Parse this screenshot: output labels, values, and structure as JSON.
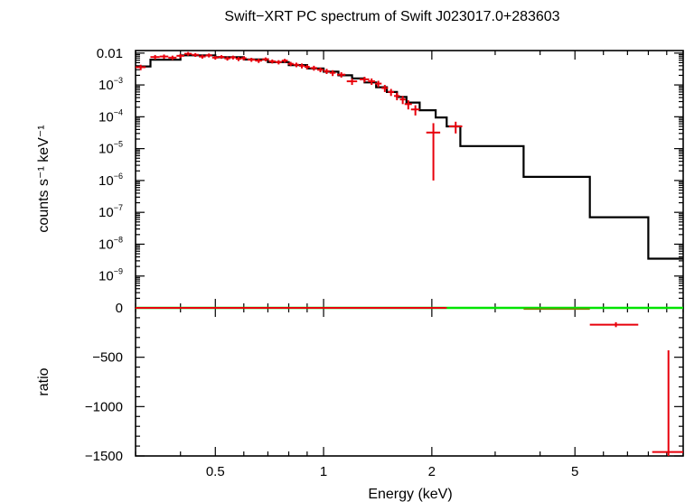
{
  "chart_data": [
    {
      "panel": "spectrum",
      "type": "line",
      "title": "Swift−XRT PC spectrum of Swift J023017.0+283603",
      "xlabel": "Energy (keV)",
      "ylabel": "counts s⁻¹ keV⁻¹",
      "xscale": "log",
      "yscale": "log",
      "xlim": [
        0.3,
        10
      ],
      "ylim": [
        1e-10,
        0.012
      ],
      "xticks": [
        0.5,
        1,
        2,
        5
      ],
      "yticks": [
        {
          "value": 0.01,
          "label": "0.01"
        },
        {
          "value": 0.001,
          "base": "10",
          "exp": "−3"
        },
        {
          "value": 0.0001,
          "base": "10",
          "exp": "−4"
        },
        {
          "value": 1e-05,
          "base": "10",
          "exp": "−5"
        },
        {
          "value": 1e-06,
          "base": "10",
          "exp": "−6"
        },
        {
          "value": 1e-07,
          "base": "10",
          "exp": "−7"
        },
        {
          "value": 1e-08,
          "base": "10",
          "exp": "−8"
        },
        {
          "value": 1e-09,
          "base": "10",
          "exp": "−9"
        }
      ],
      "grid": false,
      "series": [
        {
          "kind": "model-step",
          "color": "#000000",
          "bins": [
            [
              0.3,
              0.33,
              0.0038
            ],
            [
              0.33,
              0.4,
              0.0062
            ],
            [
              0.4,
              0.5,
              0.0085
            ],
            [
              0.5,
              0.6,
              0.0074
            ],
            [
              0.6,
              0.7,
              0.0063
            ],
            [
              0.7,
              0.8,
              0.0052
            ],
            [
              0.8,
              0.9,
              0.0042
            ],
            [
              0.9,
              1.0,
              0.0033
            ],
            [
              1.0,
              1.1,
              0.0026
            ],
            [
              1.1,
              1.2,
              0.002
            ],
            [
              1.2,
              1.3,
              0.0016
            ],
            [
              1.3,
              1.4,
              0.0012
            ],
            [
              1.4,
              1.5,
              0.00085
            ],
            [
              1.5,
              1.6,
              0.0006
            ],
            [
              1.6,
              1.7,
              0.00042
            ],
            [
              1.7,
              1.85,
              0.00028
            ],
            [
              1.85,
              2.05,
              0.00016
            ],
            [
              2.05,
              2.2,
              9.5e-05
            ],
            [
              2.2,
              2.4,
              5e-05
            ],
            [
              2.4,
              3.6,
              1.2e-05
            ],
            [
              3.6,
              5.5,
              1.3e-06
            ],
            [
              5.5,
              8.0,
              7e-08
            ],
            [
              8.0,
              10.0,
              3.5e-09
            ]
          ]
        },
        {
          "kind": "data",
          "color": "#e8000b",
          "points": [
            [
              0.31,
              0.0036,
              0.01,
              0.0007
            ],
            [
              0.34,
              0.0075,
              0.01,
              0.0012
            ],
            [
              0.36,
              0.0078,
              0.01,
              0.0012
            ],
            [
              0.38,
              0.0072,
              0.01,
              0.0011
            ],
            [
              0.4,
              0.0082,
              0.01,
              0.0012
            ],
            [
              0.42,
              0.0095,
              0.01,
              0.0013
            ],
            [
              0.44,
              0.0088,
              0.01,
              0.0012
            ],
            [
              0.46,
              0.0078,
              0.01,
              0.0011
            ],
            [
              0.48,
              0.0085,
              0.01,
              0.0012
            ],
            [
              0.5,
              0.0072,
              0.01,
              0.001
            ],
            [
              0.52,
              0.0076,
              0.01,
              0.001
            ],
            [
              0.54,
              0.0068,
              0.01,
              0.001
            ],
            [
              0.56,
              0.0073,
              0.01,
              0.001
            ],
            [
              0.58,
              0.0066,
              0.01,
              0.001
            ],
            [
              0.6,
              0.0069,
              0.01,
              0.001
            ],
            [
              0.63,
              0.0062,
              0.015,
              0.0009
            ],
            [
              0.66,
              0.0058,
              0.015,
              0.0009
            ],
            [
              0.69,
              0.0064,
              0.015,
              0.0009
            ],
            [
              0.72,
              0.0055,
              0.015,
              0.0008
            ],
            [
              0.75,
              0.0052,
              0.015,
              0.0008
            ],
            [
              0.78,
              0.0058,
              0.015,
              0.0008
            ],
            [
              0.81,
              0.0046,
              0.015,
              0.0007
            ],
            [
              0.84,
              0.0043,
              0.015,
              0.0007
            ],
            [
              0.87,
              0.004,
              0.015,
              0.0007
            ],
            [
              0.9,
              0.0037,
              0.015,
              0.0006
            ],
            [
              0.94,
              0.0034,
              0.02,
              0.0006
            ],
            [
              0.98,
              0.003,
              0.02,
              0.0005
            ],
            [
              1.02,
              0.0027,
              0.02,
              0.0005
            ],
            [
              1.06,
              0.0024,
              0.02,
              0.0005
            ],
            [
              1.12,
              0.0021,
              0.03,
              0.0004
            ],
            [
              1.2,
              0.0013,
              0.04,
              0.0003
            ],
            [
              1.3,
              0.0015,
              0.04,
              0.0003
            ],
            [
              1.36,
              0.0013,
              0.03,
              0.0003
            ],
            [
              1.42,
              0.0011,
              0.03,
              0.00025
            ],
            [
              1.48,
              0.0008,
              0.03,
              0.0002
            ],
            [
              1.54,
              0.0006,
              0.03,
              0.00015
            ],
            [
              1.6,
              0.00045,
              0.03,
              0.00012
            ],
            [
              1.66,
              0.00035,
              0.03,
              0.0001
            ],
            [
              1.72,
              0.00025,
              0.04,
              8e-05
            ],
            [
              1.8,
              0.00017,
              0.05,
              6e-05
            ],
            [
              2.02,
              3.2e-05,
              0.09,
              3.1e-05
            ],
            [
              2.33,
              5e-05,
              0.1,
              2e-05
            ]
          ]
        }
      ]
    },
    {
      "panel": "ratio",
      "type": "scatter",
      "xlabel": "Energy (keV)",
      "ylabel": "ratio",
      "xscale": "log",
      "xlim": [
        0.3,
        10
      ],
      "ylim": [
        -1500,
        0
      ],
      "xticks": [
        0.5,
        1,
        2,
        5
      ],
      "yticks": [
        0,
        -500,
        -1000,
        -1500
      ],
      "yticklabels": [
        "0",
        "−500",
        "−1000",
        "−1500"
      ],
      "reference_line": {
        "y": 0,
        "color": "#00e400"
      },
      "series": [
        {
          "kind": "data",
          "color": "#e8000b",
          "points": [
            [
              0.3,
              0,
              1.9,
              5
            ],
            [
              6.5,
              -170,
              1.0,
              25
            ],
            [
              9.1,
              -1460,
              0.9,
              1030
            ]
          ]
        },
        {
          "kind": "model",
          "color": "#808000",
          "segment": {
            "x": [
              3.6,
              5.5
            ],
            "y": -12
          }
        }
      ]
    }
  ]
}
